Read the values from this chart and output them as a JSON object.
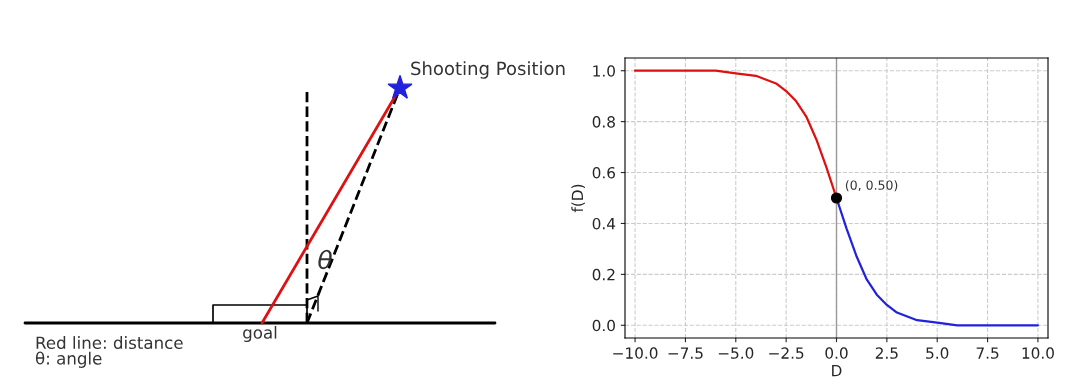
{
  "chart_data": [
    {
      "type": "other",
      "annotations": [
        "Shooting Position",
        "goal",
        "θ",
        "Red line: distance\nθ: angle"
      ]
    },
    {
      "type": "line",
      "xlabel": "D",
      "ylabel": "f(D)",
      "grid": true,
      "xlim": [
        -10.5,
        10.5
      ],
      "xticks": [
        {
          "value": -10,
          "label": "−10.0"
        },
        {
          "value": -7.5,
          "label": "−7.5"
        },
        {
          "value": -5,
          "label": "−5.0"
        },
        {
          "value": -2.5,
          "label": "−2.5"
        },
        {
          "value": 0,
          "label": "0.0"
        },
        {
          "value": 2.5,
          "label": "2.5"
        },
        {
          "value": 5,
          "label": "5.0"
        },
        {
          "value": 7.5,
          "label": "7.5"
        },
        {
          "value": 10,
          "label": "10.0"
        }
      ],
      "ylim": [
        -0.05,
        1.05
      ],
      "yticks": [
        {
          "value": 0,
          "label": "0.0"
        },
        {
          "value": 0.2,
          "label": "0.2"
        },
        {
          "value": 0.4,
          "label": "0.4"
        },
        {
          "value": 0.6,
          "label": "0.6"
        },
        {
          "value": 0.8,
          "label": "0.8"
        },
        {
          "value": 1,
          "label": "1.0"
        }
      ],
      "series": [
        {
          "type": "line",
          "color": "#dd1111",
          "x": [
            -10,
            -8,
            -6,
            -5,
            -4,
            -3,
            -2.5,
            -2,
            -1.5,
            -1,
            -0.5,
            0
          ],
          "values": [
            1.0,
            1.0,
            1.0,
            0.99,
            0.98,
            0.95,
            0.92,
            0.88,
            0.82,
            0.73,
            0.62,
            0.5
          ]
        },
        {
          "type": "line",
          "color": "#2222dd",
          "x": [
            0,
            0.5,
            1,
            1.5,
            2,
            2.5,
            3,
            4,
            5,
            6,
            8,
            10
          ],
          "values": [
            0.5,
            0.38,
            0.27,
            0.18,
            0.12,
            0.08,
            0.05,
            0.02,
            0.01,
            0.0,
            0.0,
            0.0
          ]
        },
        {
          "type": "scatter",
          "color": "#000000",
          "x": [
            0
          ],
          "values": [
            0.5
          ]
        }
      ],
      "ref_lines": [
        {
          "axis": "x",
          "value": 0,
          "color": "#999999"
        }
      ],
      "annotations": [
        {
          "text": "(0, 0.50)",
          "x": 0,
          "y": 0.5
        }
      ]
    }
  ]
}
